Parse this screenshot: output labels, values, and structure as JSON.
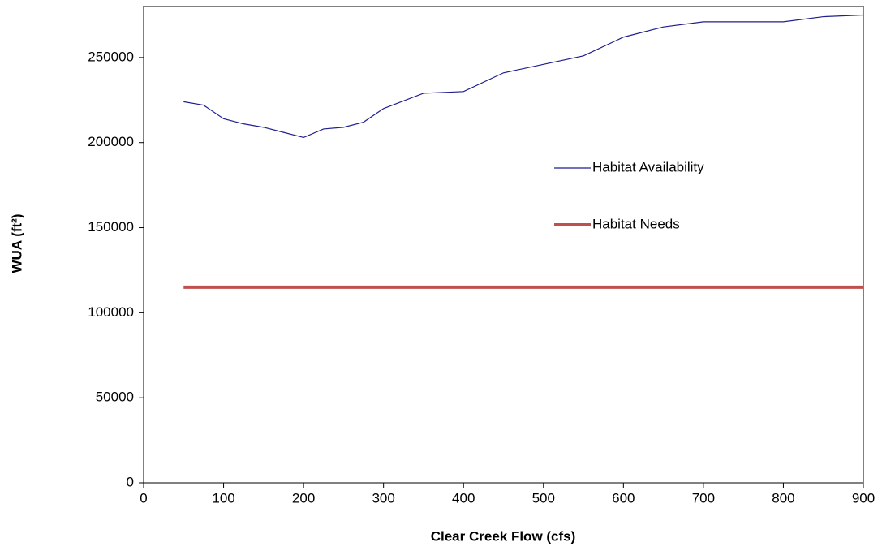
{
  "chart_data": {
    "type": "line",
    "xlabel": "Clear Creek Flow (cfs)",
    "ylabel": "WUA (ft²)",
    "xlim": [
      0,
      900
    ],
    "xticks": [
      0,
      100,
      200,
      300,
      400,
      500,
      600,
      700,
      800,
      900
    ],
    "ylim": [
      0,
      280000
    ],
    "yticks": [
      0,
      50000,
      100000,
      150000,
      200000,
      250000
    ],
    "legend": "center right",
    "series": [
      {
        "name": "Habitat Availability",
        "color": "#1f1f8f",
        "width": 1.2,
        "x": [
          50,
          75,
          100,
          125,
          150,
          175,
          200,
          225,
          250,
          275,
          300,
          350,
          400,
          450,
          500,
          550,
          600,
          650,
          700,
          800,
          850,
          900
        ],
        "values": [
          224000,
          222000,
          214000,
          211000,
          209000,
          206000,
          203000,
          208000,
          209000,
          212000,
          220000,
          229000,
          230000,
          241000,
          246000,
          251000,
          262000,
          268000,
          271000,
          271000,
          274000,
          275000
        ]
      },
      {
        "name": "Habitat Needs",
        "color": "#c0504d",
        "width": 4,
        "x": [
          50,
          900
        ],
        "values": [
          115000,
          115000
        ]
      }
    ]
  }
}
